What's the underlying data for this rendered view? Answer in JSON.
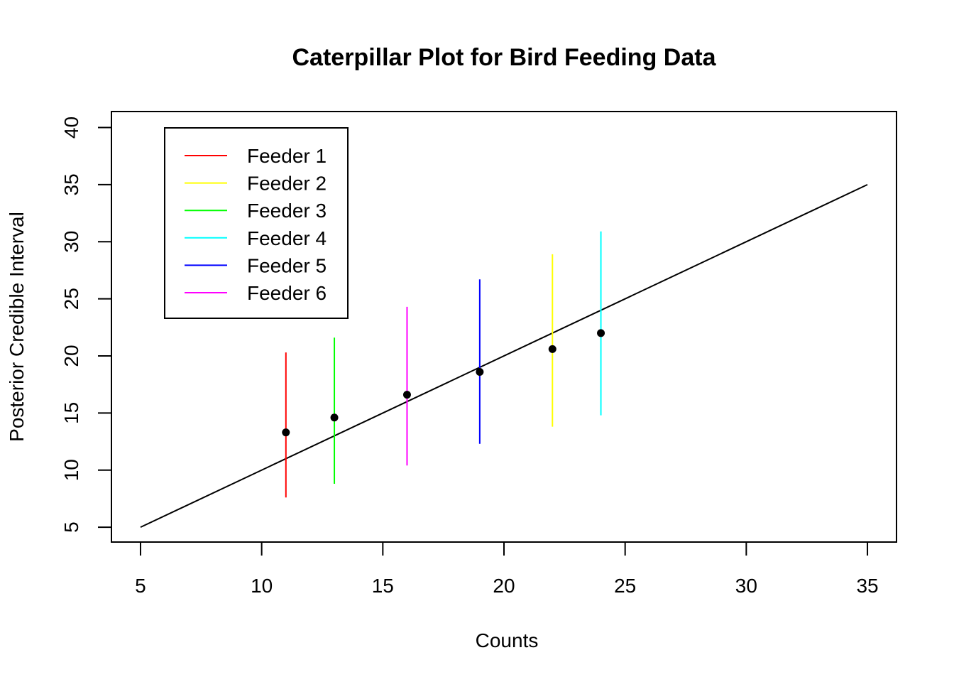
{
  "chart_data": {
    "type": "scatter",
    "title": "Caterpillar Plot for Bird Feeding Data",
    "xlabel": "Counts",
    "ylabel": "Posterior Credible Interval",
    "xlim": [
      3.8,
      36.2
    ],
    "ylim": [
      3.7,
      41.4
    ],
    "x_ticks": [
      "5",
      "10",
      "15",
      "20",
      "25",
      "30",
      "35"
    ],
    "y_ticks": [
      "5",
      "10",
      "15",
      "20",
      "25",
      "30",
      "35",
      "40"
    ],
    "reference_line": {
      "x": [
        5,
        35
      ],
      "y": [
        5,
        35
      ],
      "color": "#000000"
    },
    "legend": {
      "position": "top-left"
    },
    "series": [
      {
        "name": "Feeder 1",
        "color": "#ff0000",
        "x": 11,
        "mean": 13.3,
        "lower": 7.6,
        "upper": 20.3
      },
      {
        "name": "Feeder 2",
        "color": "#ffff00",
        "x": 22,
        "mean": 20.6,
        "lower": 13.8,
        "upper": 28.9
      },
      {
        "name": "Feeder 3",
        "color": "#00ff00",
        "x": 13,
        "mean": 14.6,
        "lower": 8.8,
        "upper": 21.6
      },
      {
        "name": "Feeder 4",
        "color": "#00ffff",
        "x": 24,
        "mean": 22.0,
        "lower": 14.8,
        "upper": 30.9
      },
      {
        "name": "Feeder 5",
        "color": "#0000ff",
        "x": 19,
        "mean": 18.6,
        "lower": 12.3,
        "upper": 26.7
      },
      {
        "name": "Feeder 6",
        "color": "#ff00ff",
        "x": 16,
        "mean": 16.6,
        "lower": 10.4,
        "upper": 24.3
      }
    ]
  }
}
